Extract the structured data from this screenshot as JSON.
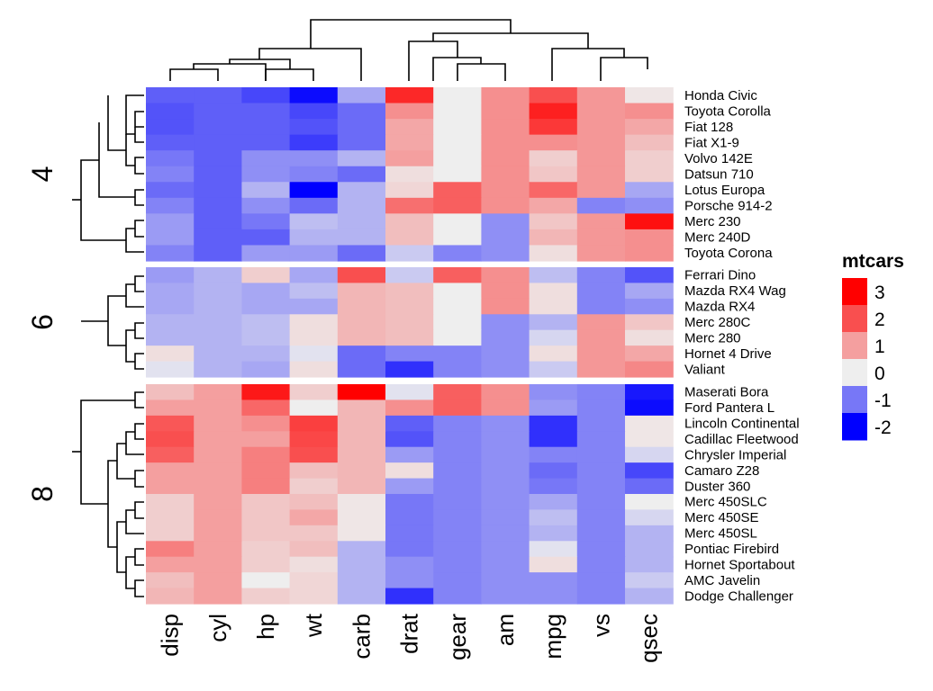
{
  "chart_data": {
    "type": "heatmap",
    "columns": [
      "disp",
      "cyl",
      "hp",
      "wt",
      "carb",
      "drat",
      "gear",
      "am",
      "mpg",
      "vs",
      "qsec"
    ],
    "rows": [
      "Honda Civic",
      "Toyota Corolla",
      "Fiat 128",
      "Fiat X1-9",
      "Volvo 142E",
      "Datsun 710",
      "Lotus Europa",
      "Porsche 914-2",
      "Merc 230",
      "Merc 240D",
      "Toyota Corona",
      "Ferrari Dino",
      "Mazda RX4 Wag",
      "Mazda RX4",
      "Merc 280C",
      "Merc 280",
      "Hornet 4 Drive",
      "Valiant",
      "Maserati Bora",
      "Ford Pantera L",
      "Lincoln Continental",
      "Cadillac Fleetwood",
      "Chrysler Imperial",
      "Camaro Z28",
      "Duster 360",
      "Merc 450SLC",
      "Merc 450SE",
      "Merc 450SL",
      "Pontiac Firebird",
      "Hornet Sportabout",
      "AMC Javelin",
      "Dodge Challenger"
    ],
    "splits": [
      {
        "label": "4",
        "rows": [
          "Honda Civic",
          "Toyota Corolla",
          "Fiat 128",
          "Fiat X1-9",
          "Volvo 142E",
          "Datsun 710",
          "Lotus Europa",
          "Porsche 914-2",
          "Merc 230",
          "Merc 240D",
          "Toyota Corona"
        ]
      },
      {
        "label": "6",
        "rows": [
          "Ferrari Dino",
          "Mazda RX4 Wag",
          "Mazda RX4",
          "Merc 280C",
          "Merc 280",
          "Hornet 4 Drive",
          "Valiant"
        ]
      },
      {
        "label": "8",
        "rows": [
          "Maserati Bora",
          "Ford Pantera L",
          "Lincoln Continental",
          "Cadillac Fleetwood",
          "Chrysler Imperial",
          "Camaro Z28",
          "Duster 360",
          "Merc 450SLC",
          "Merc 450SE",
          "Merc 450SL",
          "Pontiac Firebird",
          "Hornet Sportabout",
          "AMC Javelin",
          "Dodge Challenger"
        ]
      }
    ],
    "values": [
      [
        -1.2,
        -1.2,
        -1.4,
        -1.9,
        -0.6,
        2.5,
        0.0,
        1.2,
        2.0,
        1.1,
        0.1
      ],
      [
        -1.3,
        -1.2,
        -1.2,
        -1.4,
        -1.1,
        1.2,
        0.0,
        1.2,
        2.6,
        1.1,
        1.2
      ],
      [
        -1.3,
        -1.2,
        -1.2,
        -1.3,
        -1.1,
        0.9,
        0.0,
        1.2,
        2.3,
        1.1,
        0.9
      ],
      [
        -1.2,
        -1.2,
        -1.2,
        -1.5,
        -1.1,
        0.9,
        0.0,
        1.2,
        1.2,
        1.1,
        0.6
      ],
      [
        -1.0,
        -1.2,
        -0.8,
        -0.8,
        -0.5,
        1.0,
        0.0,
        1.2,
        0.4,
        1.1,
        0.4
      ],
      [
        -0.9,
        -1.2,
        -0.8,
        -0.9,
        -1.1,
        0.2,
        0.0,
        1.2,
        0.5,
        1.1,
        0.4
      ],
      [
        -1.1,
        -1.2,
        -0.5,
        -2.0,
        -0.5,
        0.3,
        1.8,
        1.2,
        1.7,
        1.1,
        -0.6
      ],
      [
        -0.9,
        -1.2,
        -0.8,
        -1.1,
        -0.5,
        1.6,
        1.8,
        1.2,
        0.9,
        -0.9,
        -0.8
      ],
      [
        -0.7,
        -1.2,
        -1.0,
        -0.4,
        -0.5,
        0.6,
        0.0,
        -0.8,
        0.5,
        1.1,
        2.8
      ],
      [
        -0.7,
        -1.2,
        -1.2,
        -0.5,
        -0.5,
        0.6,
        0.0,
        -0.8,
        0.7,
        1.1,
        1.2
      ],
      [
        -0.9,
        -1.2,
        -0.7,
        -0.7,
        -1.1,
        -0.3,
        -0.9,
        -0.8,
        0.2,
        1.1,
        1.2
      ],
      [
        -0.7,
        -0.5,
        0.4,
        -0.6,
        2.0,
        -0.3,
        1.8,
        1.2,
        -0.4,
        -0.9,
        -1.3
      ],
      [
        -0.6,
        -0.5,
        -0.6,
        -0.4,
        0.7,
        0.6,
        0.0,
        1.2,
        0.2,
        -0.9,
        -0.6
      ],
      [
        -0.6,
        -0.5,
        -0.6,
        -0.6,
        0.7,
        0.6,
        0.0,
        1.2,
        0.2,
        -0.9,
        -0.8
      ],
      [
        -0.5,
        -0.5,
        -0.4,
        0.2,
        0.7,
        0.6,
        0.0,
        -0.8,
        -0.5,
        1.1,
        0.5
      ],
      [
        -0.5,
        -0.5,
        -0.4,
        0.2,
        0.7,
        0.6,
        0.0,
        -0.8,
        -0.2,
        1.1,
        0.2
      ],
      [
        0.2,
        -0.5,
        -0.5,
        -0.1,
        -1.1,
        -0.9,
        -0.9,
        -0.8,
        0.2,
        1.1,
        0.9
      ],
      [
        -0.1,
        -0.5,
        -0.6,
        0.2,
        -1.1,
        -1.6,
        -0.9,
        -0.8,
        -0.3,
        1.1,
        1.3
      ],
      [
        0.6,
        1.0,
        2.7,
        0.4,
        3.2,
        -0.1,
        1.8,
        1.2,
        -0.8,
        -0.9,
        -1.8
      ],
      [
        1.0,
        1.0,
        1.7,
        0.0,
        0.7,
        1.2,
        1.8,
        1.2,
        -0.7,
        -0.9,
        -1.9
      ],
      [
        1.9,
        1.0,
        1.2,
        2.2,
        0.7,
        -1.2,
        -0.9,
        -0.8,
        -1.6,
        -0.9,
        0.1
      ],
      [
        2.0,
        1.0,
        1.0,
        2.1,
        0.7,
        -1.3,
        -0.9,
        -0.8,
        -1.6,
        -0.9,
        0.1
      ],
      [
        1.8,
        1.0,
        1.4,
        2.0,
        0.7,
        -0.7,
        -0.9,
        -0.8,
        -0.9,
        -0.9,
        -0.2
      ],
      [
        1.0,
        1.0,
        1.4,
        0.6,
        0.7,
        0.2,
        -0.9,
        -0.8,
        -1.1,
        -0.9,
        -1.4
      ],
      [
        1.0,
        1.0,
        1.4,
        0.4,
        0.7,
        -0.7,
        -0.9,
        -0.8,
        -1.0,
        -0.9,
        -1.1
      ],
      [
        0.4,
        1.0,
        0.5,
        0.6,
        0.1,
        -1.0,
        -0.9,
        -0.8,
        -0.6,
        -0.9,
        0.0
      ],
      [
        0.4,
        1.0,
        0.5,
        0.9,
        0.1,
        -1.0,
        -0.9,
        -0.8,
        -0.4,
        -0.9,
        -0.2
      ],
      [
        0.4,
        1.0,
        0.5,
        0.5,
        0.1,
        -1.0,
        -0.9,
        -0.8,
        -0.5,
        -0.9,
        -0.5
      ],
      [
        1.4,
        1.0,
        0.4,
        0.6,
        -0.5,
        -1.0,
        -0.9,
        -0.8,
        -0.1,
        -0.9,
        -0.5
      ],
      [
        1.0,
        1.0,
        0.4,
        0.2,
        -0.5,
        -0.8,
        -0.9,
        -0.8,
        0.2,
        -0.9,
        -0.5
      ],
      [
        0.6,
        1.0,
        0.0,
        0.3,
        -0.5,
        -0.8,
        -0.9,
        -0.8,
        -0.8,
        -0.9,
        -0.3
      ],
      [
        0.7,
        1.0,
        0.4,
        0.3,
        -0.5,
        -1.6,
        -0.9,
        -0.8,
        -0.8,
        -0.9,
        -0.5
      ]
    ],
    "legend": {
      "title": "mtcars",
      "ticks": [
        "3",
        "2",
        "1",
        "0",
        "-1",
        "-2"
      ],
      "tick_values": [
        3,
        2,
        1,
        0,
        -1,
        -2
      ],
      "colors": {
        "low": "#0000ff",
        "mid": "#eeeeee",
        "high": "#ff0000"
      },
      "range": [
        -2,
        3
      ],
      "placement": "right"
    }
  }
}
